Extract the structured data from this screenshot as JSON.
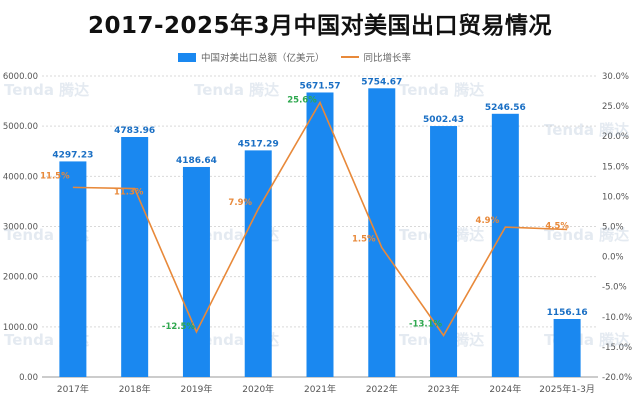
{
  "title": "2017-2025年3月中国对美国出口贸易情况",
  "colors": {
    "bar": "#1a88f0",
    "line": "#e8893a",
    "pct_positive": "#e8893a",
    "pct_negative": "#2fa84f",
    "grid": "#d9d9d9",
    "axis_text": "#555555",
    "bar_label": "#1a6fc4"
  },
  "watermark": "Tenda 腾达",
  "chart_data": {
    "type": "bar",
    "categories": [
      "2017年",
      "2018年",
      "2019年",
      "2020年",
      "2021年",
      "2022年",
      "2023年",
      "2024年",
      "2025年1-3月"
    ],
    "series": [
      {
        "name": "中国对美出口总额（亿美元）",
        "type": "bar",
        "axis": "left",
        "values": [
          4297.23,
          4783.96,
          4186.64,
          4517.29,
          5671.57,
          5754.67,
          5002.43,
          5246.56,
          1156.16
        ],
        "labels": [
          "4297.23",
          "4783.96",
          "4186.64",
          "4517.29",
          "5671.57",
          "5754.67",
          "5002.43",
          "5246.56",
          "1156.16"
        ]
      },
      {
        "name": "同比增长率",
        "type": "line",
        "axis": "right",
        "values": [
          11.5,
          11.3,
          -12.5,
          7.9,
          25.6,
          1.5,
          -13.1,
          4.9,
          4.5
        ],
        "labels": [
          "11.5%",
          "11.3%",
          "-12.5%",
          "7.9%",
          "25.6%",
          "1.5%",
          "-13.1%",
          "4.9%",
          "4.5%"
        ]
      }
    ],
    "yleft": {
      "min": 0,
      "max": 6000,
      "step": 1000,
      "ticks": [
        "0.00",
        "1000.00",
        "2000.00",
        "3000.00",
        "4000.00",
        "5000.00",
        "6000.00"
      ]
    },
    "yright": {
      "min": -20,
      "max": 30,
      "step": 5,
      "ticks": [
        "-20.0%",
        "-15.0%",
        "-10.0%",
        "-5.0%",
        "0.0%",
        "5.0%",
        "10.0%",
        "15.0%",
        "20.0%",
        "25.0%",
        "30.0%"
      ]
    },
    "grid": true,
    "legend_position": "top"
  }
}
